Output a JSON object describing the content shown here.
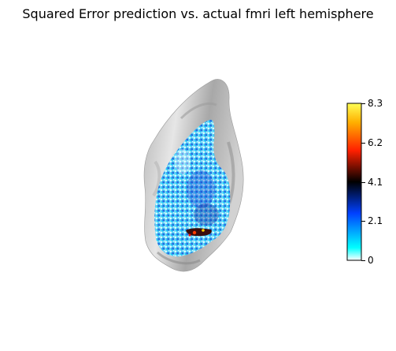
{
  "title": "Squared Error prediction vs. actual fmri left hemisphere",
  "colorbar": {
    "ticks": [
      "8.3",
      "6.2",
      "4.1",
      "2.1",
      "0"
    ],
    "tick_values": [
      8.3,
      6.2,
      4.1,
      2.1,
      0
    ],
    "range": [
      0,
      8.3
    ],
    "colormap": "cold_hot",
    "stops": [
      "#ffffff",
      "#00ffff",
      "#0000ff",
      "#000000",
      "#ff0000",
      "#ffff00"
    ]
  },
  "colors": {
    "surface_light": "#c8c8c8",
    "surface_dark": "#8a8a8a",
    "error_low": "#00ffff",
    "error_mid": "#1f3fd0",
    "error_high": "#ff2a00"
  }
}
